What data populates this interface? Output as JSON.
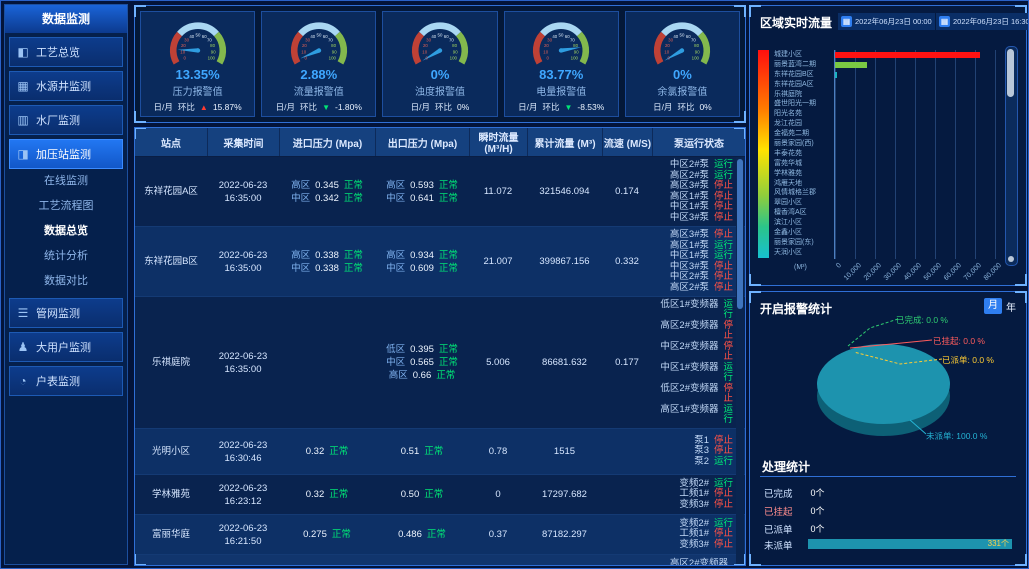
{
  "sidebar": {
    "header": "数据监测",
    "items": [
      {
        "label": "工艺总览",
        "glyph": "◧"
      },
      {
        "label": "水源井监测",
        "glyph": "▦"
      },
      {
        "label": "水厂监测",
        "glyph": "▥"
      },
      {
        "label": "加压站监测",
        "glyph": "◨"
      },
      {
        "label": "管网监测",
        "glyph": "☰"
      },
      {
        "label": "大用户监测",
        "glyph": "♟"
      },
      {
        "label": "户表监测",
        "glyph": "◔"
      }
    ],
    "subitems": [
      {
        "label": "在线监测"
      },
      {
        "label": "工艺流程图"
      },
      {
        "label": "数据总览"
      },
      {
        "label": "统计分析"
      },
      {
        "label": "数据对比"
      }
    ]
  },
  "gauges": {
    "period_label": "日/月",
    "trend_word": "环比",
    "items": [
      {
        "value": 13.35,
        "display": "13.35%",
        "label": "压力报警值",
        "trend": "15.87%",
        "trend_dir": "up"
      },
      {
        "value": 2.88,
        "display": "2.88%",
        "label": "流量报警值",
        "trend": "-1.80%",
        "trend_dir": "down"
      },
      {
        "value": 0,
        "display": "0%",
        "label": "浊度报警值",
        "trend": "0%",
        "trend_dir": "flat"
      },
      {
        "value": 83.77,
        "display": "83.77%",
        "label": "电量报警值",
        "trend": "-8.53%",
        "trend_dir": "down"
      },
      {
        "value": 0,
        "display": "0%",
        "label": "余氯报警值",
        "trend": "0%",
        "trend_dir": "flat"
      }
    ]
  },
  "table": {
    "headers": [
      "站点",
      "采集时间",
      "进口压力 (Mpa)",
      "出口压力 (Mpa)",
      "瞬时流量 (M³/H)",
      "累计流量 (M³)",
      "流速 (M/S)",
      "泵运行状态"
    ],
    "rows": [
      {
        "station": "东祥花园A区",
        "date": "2022-06-23",
        "time": "16:35:00",
        "inlet": [
          {
            "zone": "高区",
            "value": "0.345",
            "status": "正常"
          },
          {
            "zone": "中区",
            "value": "0.342",
            "status": "正常"
          }
        ],
        "outlet": [
          {
            "zone": "高区",
            "value": "0.593",
            "status": "正常"
          },
          {
            "zone": "中区",
            "value": "0.641",
            "status": "正常"
          }
        ],
        "flow": "11.072",
        "total": "321546.094",
        "speed": "0.174",
        "pumps": [
          {
            "name": "中区2#泵",
            "status": "运行"
          },
          {
            "name": "高区2#泵",
            "status": "运行"
          },
          {
            "name": "高区3#泵",
            "status": "停止"
          },
          {
            "name": "高区1#泵",
            "status": "停止"
          },
          {
            "name": "中区1#泵",
            "status": "停止"
          },
          {
            "name": "中区3#泵",
            "status": "停止"
          }
        ]
      },
      {
        "station": "东祥花园B区",
        "date": "2022-06-23",
        "time": "16:35:00",
        "inlet": [
          {
            "zone": "高区",
            "value": "0.338",
            "status": "正常"
          },
          {
            "zone": "中区",
            "value": "0.338",
            "status": "正常"
          }
        ],
        "outlet": [
          {
            "zone": "高区",
            "value": "0.934",
            "status": "正常"
          },
          {
            "zone": "中区",
            "value": "0.609",
            "status": "正常"
          }
        ],
        "flow": "21.007",
        "total": "399867.156",
        "speed": "0.332",
        "pumps": [
          {
            "name": "高区3#泵",
            "status": "停止"
          },
          {
            "name": "高区1#泵",
            "status": "运行"
          },
          {
            "name": "中区1#泵",
            "status": "运行"
          },
          {
            "name": "中区3#泵",
            "status": "停止"
          },
          {
            "name": "中区2#泵",
            "status": "停止"
          },
          {
            "name": "高区2#泵",
            "status": "停止"
          }
        ]
      },
      {
        "station": "乐祺庭院",
        "date": "2022-06-23",
        "time": "16:35:00",
        "inlet": [],
        "outlet": [
          {
            "zone": "低区",
            "value": "0.395",
            "status": "正常"
          },
          {
            "zone": "中区",
            "value": "0.565",
            "status": "正常"
          },
          {
            "zone": "高区",
            "value": "0.66",
            "status": "正常"
          }
        ],
        "flow": "5.006",
        "total": "86681.632",
        "speed": "0.177",
        "pumps": [
          {
            "name": "低区1#变频器",
            "status": "运行"
          },
          {
            "name": "高区2#变频器",
            "status": "停止"
          },
          {
            "name": "中区2#变频器",
            "status": "停止"
          },
          {
            "name": "中区1#变频器",
            "status": "运行"
          },
          {
            "name": "低区2#变频器",
            "status": "停止"
          },
          {
            "name": "高区1#变频器",
            "status": "运行"
          }
        ]
      },
      {
        "station": "光明小区",
        "date": "2022-06-23",
        "time": "16:30:46",
        "inlet": [
          {
            "zone": "",
            "value": "0.32",
            "status": "正常"
          }
        ],
        "outlet": [
          {
            "zone": "",
            "value": "0.51",
            "status": "正常"
          }
        ],
        "flow": "0.78",
        "total": "1515",
        "speed": "",
        "pumps": [
          {
            "name": "泵1",
            "status": "停止"
          },
          {
            "name": "泵3",
            "status": "停止"
          },
          {
            "name": "泵2",
            "status": "运行"
          }
        ]
      },
      {
        "station": "学林雅苑",
        "date": "2022-06-23",
        "time": "16:23:12",
        "inlet": [
          {
            "zone": "",
            "value": "0.32",
            "status": "正常"
          }
        ],
        "outlet": [
          {
            "zone": "",
            "value": "0.50",
            "status": "正常"
          }
        ],
        "flow": "0",
        "total": "17297.682",
        "speed": "",
        "pumps": [
          {
            "name": "变频2#",
            "status": "运行"
          },
          {
            "name": "工频1#",
            "status": "停止"
          },
          {
            "name": "变频3#",
            "status": "停止"
          }
        ]
      },
      {
        "station": "富丽华庭",
        "date": "2022-06-23",
        "time": "16:21:50",
        "inlet": [
          {
            "zone": "",
            "value": "0.275",
            "status": "正常"
          }
        ],
        "outlet": [
          {
            "zone": "",
            "value": "0.486",
            "status": "正常"
          }
        ],
        "flow": "0.37",
        "total": "87182.297",
        "speed": "",
        "pumps": [
          {
            "name": "变频2#",
            "status": "运行"
          },
          {
            "name": "工频1#",
            "status": "停止"
          },
          {
            "name": "变频3#",
            "status": "停止"
          }
        ]
      }
    ],
    "partial_pump": "高区2#变频器"
  },
  "flow_panel": {
    "title": "区域实时流量",
    "date_from": "2022年06月23日 00:00",
    "date_to": "2022年06月23日 16:30",
    "calendar_glyph": "▦",
    "unit": "(M³)",
    "chart": {
      "type": "bar",
      "categories": [
        "城建小区",
        "丽景蓝湾二期",
        "东祥花园B区",
        "东祥花园A区",
        "乐祺庭院",
        "盛世阳光一期",
        "阳光名苑",
        "龙江花园",
        "金福苑二期",
        "丽景家园(西)",
        "丰泰花苑",
        "富苑华城",
        "学林雅苑",
        "鸿雁天地",
        "风情城格兰郡",
        "翠园小区",
        "檀香湾A区",
        "滨江小区",
        "金鑫小区",
        "丽景家园(东)",
        "天润小区"
      ],
      "values": [
        72500,
        16000,
        600,
        0,
        0,
        0,
        0,
        0,
        0,
        0,
        0,
        0,
        0,
        0,
        0,
        0,
        0,
        0,
        0,
        0,
        0
      ],
      "bar_colors": [
        "#ff1212",
        "#7ac943",
        "#19b5c2"
      ],
      "x_ticks": [
        "0",
        "10,000",
        "20,000",
        "30,000",
        "40,000",
        "50,000",
        "60,000",
        "70,000",
        "80,000"
      ],
      "xlim": [
        0,
        80000
      ]
    }
  },
  "alarm_panel": {
    "title": "开启报警统计",
    "toggle": {
      "month": "月",
      "year": "年",
      "selected": "月"
    },
    "pie": {
      "type": "pie",
      "slices": [
        {
          "label": "已完成",
          "pct": "0.0 %",
          "value": 0,
          "color": "#2ecc71"
        },
        {
          "label": "已挂起",
          "pct": "0.0 %",
          "value": 0,
          "color": "#ff5c5c"
        },
        {
          "label": "已派单",
          "pct": "0.0 %",
          "value": 0,
          "color": "#ffcc33"
        },
        {
          "label": "未派单",
          "pct": "100.0 %",
          "value": 100,
          "color": "#25b4d4"
        }
      ],
      "body_color": "#1d93ae"
    }
  },
  "process_panel": {
    "title": "处理统计",
    "rows": [
      {
        "label": "已完成",
        "value": "0个"
      },
      {
        "label": "已挂起",
        "value": "0个"
      },
      {
        "label": "已派单",
        "value": "0个"
      }
    ],
    "bar_row": {
      "label": "未派单",
      "value": "331个",
      "pct": 100,
      "color": "#1d93ae"
    }
  }
}
